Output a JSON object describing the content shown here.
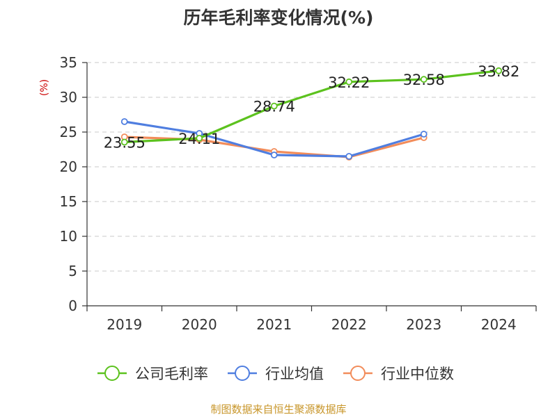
{
  "chart_data": {
    "type": "line",
    "title": "历年毛利率变化情况(%)",
    "ylabel": "(%)",
    "xlabel": "",
    "categories": [
      "2019",
      "2020",
      "2021",
      "2022",
      "2023",
      "2024"
    ],
    "ylim": [
      0,
      35
    ],
    "yticks": [
      0,
      5,
      10,
      15,
      20,
      25,
      30,
      35
    ],
    "grid": true,
    "legend_position": "bottom",
    "series": [
      {
        "name": "公司毛利率",
        "color": "#5cc21e",
        "values": [
          23.55,
          24.11,
          28.74,
          32.22,
          32.58,
          33.82
        ],
        "labels": [
          "23.55",
          "24.11",
          "28.74",
          "32.22",
          "32.58",
          "33.82"
        ]
      },
      {
        "name": "行业均值",
        "color": "#4f7ee0",
        "values": [
          26.5,
          24.8,
          21.7,
          21.5,
          24.7,
          null
        ]
      },
      {
        "name": "行业中位数",
        "color": "#f28c5a",
        "values": [
          24.3,
          23.9,
          22.2,
          21.4,
          24.2,
          null
        ]
      }
    ]
  },
  "footer": {
    "source": "制图数据来自恒生聚源数据库"
  }
}
